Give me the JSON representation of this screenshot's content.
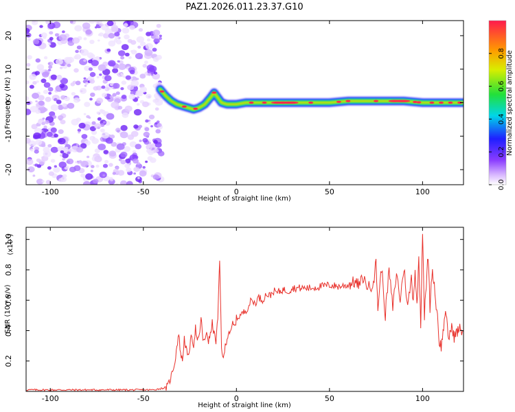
{
  "chart_data": [
    {
      "type": "heatmap",
      "title": "PAZ1.2026.011.23.37.G10",
      "xlabel": "Height of straight line (km)",
      "ylabel": "Frequency (Hz)",
      "xlim": [
        -113,
        122
      ],
      "ylim": [
        -24.5,
        24.5
      ],
      "xticks": [
        -100,
        -50,
        0,
        50,
        100
      ],
      "yticks": [
        -20,
        -10,
        0,
        10,
        20
      ],
      "noise_region_x": [
        -113,
        -40
      ],
      "signal_trace": {
        "x": [
          -41,
          -38,
          -35,
          -32,
          -29,
          -26,
          -23,
          -20,
          -17,
          -14,
          -12,
          -10,
          -8,
          -5,
          0,
          5,
          10,
          20,
          30,
          40,
          50,
          60,
          70,
          80,
          90,
          100,
          110,
          122
        ],
        "freq": [
          4,
          2,
          0.5,
          -0.5,
          -1,
          -1.5,
          -2,
          -1.5,
          -0.5,
          1.5,
          3,
          1.5,
          0,
          -0.5,
          -0.5,
          0,
          0,
          0,
          0,
          0,
          0,
          0.5,
          0.5,
          0.5,
          0.5,
          0,
          0,
          0
        ]
      },
      "colorbar": {
        "label": "Normalized spectral amplitude",
        "ticks": [
          0.0,
          0.2,
          0.4,
          0.6,
          0.8
        ],
        "tick_labels": [
          "0.0",
          "0.2",
          "0.4",
          "0.6",
          "0.8"
        ],
        "range": [
          0,
          1
        ]
      }
    },
    {
      "type": "line",
      "xlabel": "Height of straight line (km)",
      "ylabel": "SNR (10 * v/v)",
      "y_multiplier_base": "(x10",
      "y_multiplier_exp": "4",
      "y_multiplier_close": ")",
      "xlim": [
        -113,
        122
      ],
      "ylim": [
        0,
        1.08
      ],
      "xticks": [
        -100,
        -50,
        0,
        50,
        100
      ],
      "yticks": [
        0.2,
        0.4,
        0.6,
        0.8,
        1.0
      ],
      "series": [
        {
          "name": "SNR",
          "color": "#e8302a",
          "x": [
            -113,
            -100,
            -80,
            -60,
            -45,
            -40,
            -37,
            -35,
            -33,
            -32,
            -31,
            -30,
            -29,
            -28,
            -27,
            -26,
            -25,
            -24,
            -23,
            -22,
            -21,
            -20,
            -19,
            -18,
            -17,
            -16,
            -15,
            -14,
            -13,
            -12,
            -11,
            -10,
            -9,
            -8,
            -7,
            -6,
            -5,
            -4,
            -3,
            -2,
            -1,
            0,
            2,
            4,
            6,
            8,
            10,
            12,
            14,
            16,
            18,
            20,
            22,
            25,
            28,
            30,
            35,
            40,
            45,
            50,
            55,
            60,
            63,
            66,
            68,
            70,
            72,
            74,
            75,
            76,
            78,
            80,
            82,
            84,
            86,
            88,
            90,
            92,
            94,
            95,
            96,
            97,
            98,
            99,
            100,
            101,
            102,
            103,
            104,
            105,
            106,
            107,
            108,
            109,
            110,
            111,
            112,
            113,
            114,
            115,
            116,
            117,
            118,
            119,
            120,
            121,
            122
          ],
          "values": [
            0.01,
            0.01,
            0.01,
            0.01,
            0.01,
            0.02,
            0.03,
            0.1,
            0.2,
            0.3,
            0.38,
            0.25,
            0.2,
            0.35,
            0.28,
            0.22,
            0.3,
            0.37,
            0.3,
            0.42,
            0.32,
            0.36,
            0.48,
            0.35,
            0.32,
            0.4,
            0.33,
            0.37,
            0.45,
            0.38,
            0.33,
            0.48,
            0.86,
            0.3,
            0.2,
            0.3,
            0.35,
            0.4,
            0.38,
            0.45,
            0.42,
            0.48,
            0.5,
            0.52,
            0.55,
            0.6,
            0.58,
            0.62,
            0.6,
            0.64,
            0.63,
            0.66,
            0.65,
            0.67,
            0.66,
            0.68,
            0.68,
            0.68,
            0.69,
            0.7,
            0.69,
            0.7,
            0.72,
            0.7,
            0.75,
            0.7,
            0.68,
            0.75,
            0.85,
            0.55,
            0.82,
            0.5,
            0.8,
            0.55,
            0.78,
            0.6,
            0.82,
            0.55,
            0.75,
            0.6,
            0.8,
            0.55,
            0.88,
            0.45,
            1.07,
            0.5,
            0.7,
            0.9,
            0.55,
            0.78,
            0.75,
            0.6,
            0.5,
            0.32,
            0.3,
            0.38,
            0.52,
            0.45,
            0.35,
            0.4,
            0.42,
            0.36,
            0.38,
            0.4,
            0.41,
            0.4,
            0.4
          ]
        }
      ]
    }
  ]
}
